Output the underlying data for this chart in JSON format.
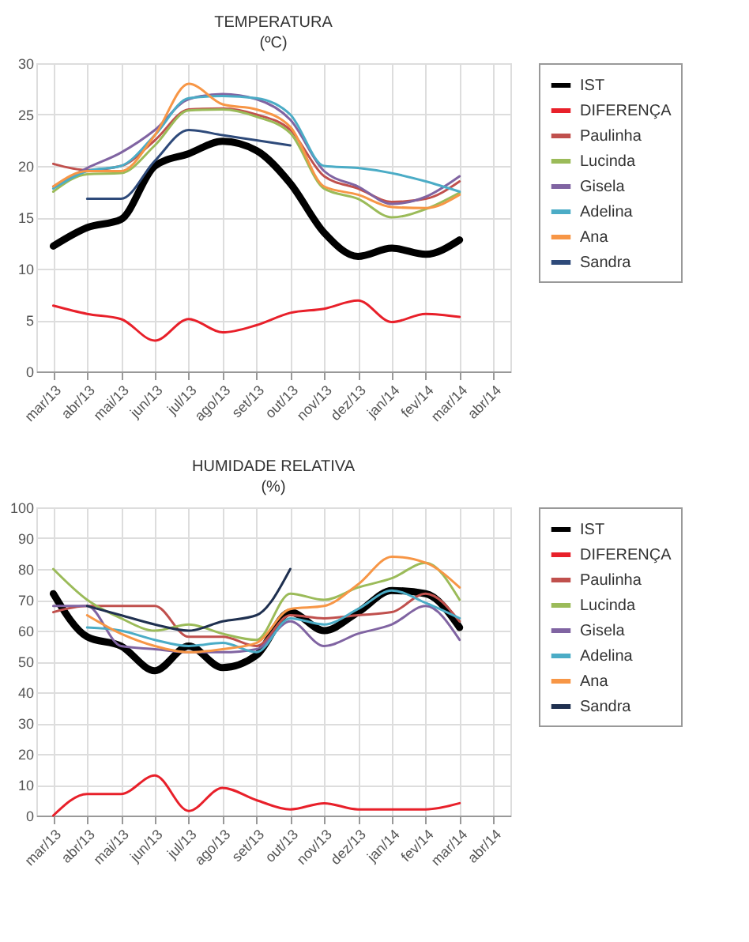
{
  "chart_data": [
    {
      "type": "line",
      "title": "TEMPERATURA",
      "subtitle": "(ºC)",
      "categories": [
        "mar/13",
        "abr/13",
        "mai/13",
        "jun/13",
        "jul/13",
        "ago/13",
        "set/13",
        "out/13",
        "nov/13",
        "dez/13",
        "jan/14",
        "fev/14",
        "mar/14",
        "abr/14"
      ],
      "series": [
        {
          "name": "IST",
          "color": "#000000",
          "values": [
            12.2,
            14.0,
            14.8,
            20.0,
            21.2,
            22.4,
            21.5,
            18.3,
            13.5,
            11.2,
            12.0,
            11.4,
            12.8,
            null
          ]
        },
        {
          "name": "DIFERENÇA",
          "color": "#e8202a",
          "values": [
            6.4,
            5.6,
            5.1,
            3.0,
            5.1,
            3.8,
            4.5,
            5.7,
            6.1,
            6.9,
            4.8,
            5.6,
            5.3,
            null
          ]
        },
        {
          "name": "Paulinha",
          "color": "#c0504d",
          "values": [
            20.2,
            19.6,
            20.0,
            22.5,
            25.5,
            25.6,
            25.0,
            23.5,
            19.0,
            17.8,
            16.5,
            16.8,
            18.5,
            null
          ]
        },
        {
          "name": "Lucinda",
          "color": "#9bbb59",
          "values": [
            17.5,
            19.2,
            19.3,
            22.0,
            25.4,
            25.5,
            24.8,
            23.2,
            17.8,
            16.8,
            15.0,
            15.8,
            17.4,
            null
          ]
        },
        {
          "name": "Gisela",
          "color": "#8064a2",
          "values": [
            18.0,
            19.8,
            21.3,
            23.5,
            26.5,
            27.0,
            26.5,
            24.5,
            19.5,
            18.0,
            16.3,
            17.0,
            19.0,
            null
          ]
        },
        {
          "name": "Adelina",
          "color": "#4bacc6",
          "values": [
            17.8,
            19.5,
            20.0,
            23.0,
            26.6,
            26.8,
            26.6,
            25.0,
            20.0,
            19.8,
            19.3,
            18.5,
            17.5,
            null
          ]
        },
        {
          "name": "Ana",
          "color": "#f79646",
          "values": [
            18.0,
            19.5,
            19.5,
            23.0,
            28.0,
            26.0,
            25.5,
            23.8,
            18.0,
            17.2,
            16.0,
            15.9,
            17.2,
            null
          ]
        },
        {
          "name": "Sandra",
          "color": "#2e4a7a",
          "values": [
            null,
            16.8,
            16.8,
            20.5,
            23.5,
            23.0,
            22.5,
            22.0,
            null,
            null,
            null,
            null,
            null,
            null
          ]
        }
      ],
      "ylim": [
        0,
        30
      ],
      "yticks": [
        0,
        5,
        10,
        15,
        20,
        25,
        30
      ],
      "grid": true,
      "legend": "right",
      "line_style": "solid",
      "marker": "none"
    },
    {
      "type": "line",
      "title": "HUMIDADE RELATIVA",
      "subtitle": "(%)",
      "categories": [
        "mar/13",
        "abr/13",
        "mai/13",
        "jun/13",
        "jul/13",
        "ago/13",
        "set/13",
        "out/13",
        "nov/13",
        "dez/13",
        "jan/14",
        "fev/14",
        "mar/14",
        "abr/14"
      ],
      "series": [
        {
          "name": "IST",
          "color": "#000000",
          "values": [
            72,
            58,
            55,
            47,
            55,
            48,
            52,
            66,
            60,
            66,
            73,
            72,
            61,
            null
          ]
        },
        {
          "name": "DIFERENÇA",
          "color": "#e8202a",
          "values": [
            0,
            7,
            7,
            13,
            1.5,
            9,
            5,
            2,
            4,
            2,
            null,
            2,
            4,
            null
          ]
        },
        {
          "name": "Paulinha",
          "color": "#c0504d",
          "values": [
            66,
            68,
            68,
            68,
            58,
            58,
            55,
            65,
            64,
            65,
            66,
            72,
            63,
            null
          ]
        },
        {
          "name": "Lucinda",
          "color": "#9bbb59",
          "values": [
            80,
            70,
            64,
            60,
            62,
            59,
            57,
            72,
            70,
            74,
            77,
            82,
            70,
            null
          ]
        },
        {
          "name": "Gisela",
          "color": "#8064a2",
          "values": [
            68,
            68,
            55,
            54,
            53,
            53,
            54,
            63,
            55,
            59,
            62,
            68,
            57,
            null
          ]
        },
        {
          "name": "Adelina",
          "color": "#4bacc6",
          "values": [
            null,
            61,
            60,
            57,
            55,
            56,
            53,
            64,
            62,
            67,
            73,
            69,
            64,
            null
          ]
        },
        {
          "name": "Ana",
          "color": "#f79646",
          "values": [
            null,
            65,
            59,
            55,
            53,
            54,
            56,
            67,
            68,
            75,
            84,
            82,
            74,
            null
          ]
        },
        {
          "name": "Sandra",
          "color": "#1f3050",
          "values": [
            null,
            68,
            65,
            62,
            60,
            63,
            65,
            80,
            null,
            null,
            null,
            null,
            null,
            null
          ]
        }
      ],
      "ylim": [
        0,
        100
      ],
      "yticks": [
        0,
        10,
        20,
        30,
        40,
        50,
        60,
        70,
        80,
        90,
        100
      ],
      "grid": true,
      "legend": "right",
      "line_style": "solid",
      "marker": "none"
    }
  ]
}
